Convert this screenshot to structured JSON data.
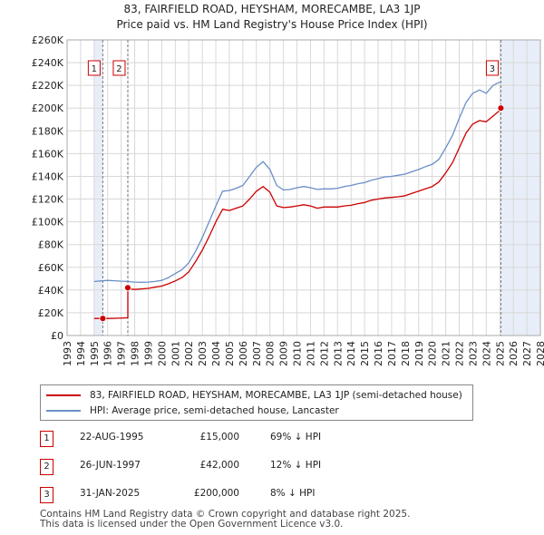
{
  "title": {
    "line1": "83, FAIRFIELD ROAD, HEYSHAM, MORECAMBE, LA3 1JP",
    "line2": "Price paid vs. HM Land Registry's House Price Index (HPI)"
  },
  "colors": {
    "price_line": "#cc0000",
    "hpi_line": "#6a8fc7",
    "shade": "#e8eef8",
    "grid": "#d8d8d8",
    "marker_vline": "#777777"
  },
  "chart_data": {
    "type": "line",
    "title": "83, FAIRFIELD ROAD, HEYSHAM, MORECAMBE, LA3 1JP — Price paid vs. HM Land Registry's House Price Index (HPI)",
    "xlim": [
      1993,
      2028
    ],
    "ylim": [
      0,
      260000
    ],
    "x_ticks": [
      1993,
      1994,
      1995,
      1996,
      1997,
      1998,
      1999,
      2000,
      2001,
      2002,
      2003,
      2004,
      2005,
      2006,
      2007,
      2008,
      2009,
      2010,
      2011,
      2012,
      2013,
      2014,
      2015,
      2016,
      2017,
      2018,
      2019,
      2020,
      2021,
      2022,
      2023,
      2024,
      2025,
      2026,
      2027,
      2028
    ],
    "y_ticks": [
      0,
      20000,
      40000,
      60000,
      80000,
      100000,
      120000,
      140000,
      160000,
      180000,
      200000,
      220000,
      240000,
      260000
    ],
    "y_tick_labels": [
      "£0",
      "£20K",
      "£40K",
      "£60K",
      "£80K",
      "£100K",
      "£120K",
      "£140K",
      "£160K",
      "£180K",
      "£200K",
      "£220K",
      "£240K",
      "£260K"
    ],
    "grid": true,
    "shaded_ranges": [
      [
        1995.0,
        1995.64
      ],
      [
        1997.48,
        1997.5
      ],
      [
        2025.08,
        2028.0
      ]
    ],
    "series": [
      {
        "name": "83, FAIRFIELD ROAD, HEYSHAM, MORECAMBE, LA3 1JP (semi-detached house)",
        "color": "#cc0000",
        "x": [
          1995.0,
          1995.64,
          1995.64,
          1996.2,
          1996.8,
          1997.2,
          1997.49,
          1997.49,
          1997.6,
          1998.0,
          1998.5,
          1999.0,
          1999.5,
          2000.0,
          2000.5,
          2001.0,
          2001.5,
          2002.0,
          2002.5,
          2003.0,
          2003.5,
          2004.0,
          2004.5,
          2005.0,
          2005.5,
          2006.0,
          2006.5,
          2007.0,
          2007.5,
          2008.0,
          2008.5,
          2009.0,
          2009.5,
          2010.0,
          2010.5,
          2011.0,
          2011.5,
          2012.0,
          2012.5,
          2013.0,
          2013.5,
          2014.0,
          2014.5,
          2015.0,
          2015.5,
          2016.0,
          2016.5,
          2017.0,
          2017.5,
          2018.0,
          2018.5,
          2019.0,
          2019.5,
          2020.0,
          2020.5,
          2021.0,
          2021.5,
          2022.0,
          2022.5,
          2023.0,
          2023.5,
          2024.0,
          2024.5,
          2025.0,
          2025.08
        ],
        "y": [
          15000,
          15000,
          15000,
          15000,
          15200,
          15400,
          15600,
          42000,
          41000,
          40500,
          41000,
          41500,
          42500,
          43500,
          45500,
          48000,
          51000,
          56000,
          65000,
          75000,
          87000,
          100000,
          111000,
          110000,
          112000,
          114000,
          120000,
          127000,
          131000,
          126000,
          114000,
          112500,
          113000,
          114000,
          115000,
          114000,
          112000,
          113000,
          113000,
          113000,
          114000,
          114500,
          116000,
          117000,
          119000,
          120000,
          121000,
          121500,
          122000,
          123000,
          125000,
          127000,
          129000,
          131000,
          135000,
          143000,
          152000,
          165000,
          178000,
          186000,
          189000,
          188000,
          193000,
          198000,
          200000
        ]
      },
      {
        "name": "HPI: Average price, semi-detached house, Lancaster",
        "color": "#6a8fc7",
        "x": [
          1995.0,
          1995.5,
          1996.0,
          1996.5,
          1997.0,
          1997.5,
          1998.0,
          1998.5,
          1999.0,
          1999.5,
          2000.0,
          2000.5,
          2001.0,
          2001.5,
          2002.0,
          2002.5,
          2003.0,
          2003.5,
          2004.0,
          2004.5,
          2005.0,
          2005.5,
          2006.0,
          2006.5,
          2007.0,
          2007.5,
          2008.0,
          2008.5,
          2009.0,
          2009.5,
          2010.0,
          2010.5,
          2011.0,
          2011.5,
          2012.0,
          2012.5,
          2013.0,
          2013.5,
          2014.0,
          2014.5,
          2015.0,
          2015.5,
          2016.0,
          2016.5,
          2017.0,
          2017.5,
          2018.0,
          2018.5,
          2019.0,
          2019.5,
          2020.0,
          2020.5,
          2021.0,
          2021.5,
          2022.0,
          2022.5,
          2023.0,
          2023.5,
          2024.0,
          2024.5,
          2025.0
        ],
        "y": [
          47500,
          48000,
          48500,
          48200,
          47800,
          47500,
          47000,
          46800,
          47000,
          47500,
          48500,
          51000,
          54500,
          58000,
          64000,
          74000,
          86000,
          100000,
          114000,
          127000,
          127500,
          129500,
          132000,
          140000,
          148000,
          153000,
          146000,
          132000,
          128000,
          128500,
          130000,
          131000,
          130000,
          128500,
          129000,
          129000,
          129500,
          131000,
          132000,
          133500,
          134500,
          136500,
          138000,
          139500,
          140000,
          141000,
          142000,
          144000,
          146000,
          148500,
          150500,
          155000,
          165000,
          176000,
          191000,
          205000,
          213000,
          216000,
          213000,
          220000,
          223000
        ]
      }
    ],
    "transactions": [
      {
        "label": "1",
        "x": 1995.64,
        "y": 15000
      },
      {
        "label": "2",
        "x": 1997.49,
        "y": 42000
      },
      {
        "label": "3",
        "x": 2025.08,
        "y": 200000
      }
    ]
  },
  "legend": {
    "price_label": "83, FAIRFIELD ROAD, HEYSHAM, MORECAMBE, LA3 1JP (semi-detached house)",
    "hpi_label": "HPI: Average price, semi-detached house, Lancaster"
  },
  "table": [
    {
      "num": "1",
      "date": "22-AUG-1995",
      "price": "£15,000",
      "hpi": "69% ↓ HPI"
    },
    {
      "num": "2",
      "date": "26-JUN-1997",
      "price": "£42,000",
      "hpi": "12% ↓ HPI"
    },
    {
      "num": "3",
      "date": "31-JAN-2025",
      "price": "£200,000",
      "hpi": "8% ↓ HPI"
    }
  ],
  "footer": {
    "line1": "Contains HM Land Registry data © Crown copyright and database right 2025.",
    "line2": "This data is licensed under the Open Government Licence v3.0."
  }
}
